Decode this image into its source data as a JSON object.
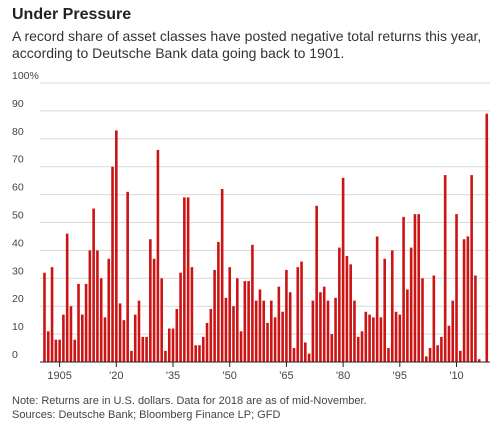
{
  "chart_data": {
    "type": "bar",
    "title": "Under Pressure",
    "subtitle": "A record share of asset classes have posted negative total returns this year, according to Deutsche Bank data going back to 1901.",
    "xlabel": "",
    "ylabel": "",
    "ylim": [
      0,
      100
    ],
    "yticks": [
      0,
      10,
      20,
      30,
      40,
      50,
      60,
      70,
      80,
      90,
      100
    ],
    "ytick_labels": [
      "0",
      "10",
      "20",
      "30",
      "40",
      "50",
      "60",
      "70",
      "80",
      "90",
      "100%"
    ],
    "xticks": [
      1905,
      1920,
      1935,
      1950,
      1965,
      1980,
      1995,
      2010
    ],
    "xtick_labels": [
      "1905",
      "'20",
      "'35",
      "'50",
      "'65",
      "'80",
      "'95",
      "'10"
    ],
    "grid": true,
    "color": "#cc1414",
    "x": [
      1901,
      1902,
      1903,
      1904,
      1905,
      1906,
      1907,
      1908,
      1909,
      1910,
      1911,
      1912,
      1913,
      1914,
      1915,
      1916,
      1917,
      1918,
      1919,
      1920,
      1921,
      1922,
      1923,
      1924,
      1925,
      1926,
      1927,
      1928,
      1929,
      1930,
      1931,
      1932,
      1933,
      1934,
      1935,
      1936,
      1937,
      1938,
      1939,
      1940,
      1941,
      1942,
      1943,
      1944,
      1945,
      1946,
      1947,
      1948,
      1949,
      1950,
      1951,
      1952,
      1953,
      1954,
      1955,
      1956,
      1957,
      1958,
      1959,
      1960,
      1961,
      1962,
      1963,
      1964,
      1965,
      1966,
      1967,
      1968,
      1969,
      1970,
      1971,
      1972,
      1973,
      1974,
      1975,
      1976,
      1977,
      1978,
      1979,
      1980,
      1981,
      1982,
      1983,
      1984,
      1985,
      1986,
      1987,
      1988,
      1989,
      1990,
      1991,
      1992,
      1993,
      1994,
      1995,
      1996,
      1997,
      1998,
      1999,
      2000,
      2001,
      2002,
      2003,
      2004,
      2005,
      2006,
      2007,
      2008,
      2009,
      2010,
      2011,
      2012,
      2013,
      2014,
      2015,
      2016,
      2017,
      2018
    ],
    "values": [
      32,
      11,
      34,
      8,
      8,
      17,
      46,
      20,
      8,
      28,
      17,
      28,
      40,
      55,
      40,
      30,
      16,
      37,
      70,
      83,
      21,
      15,
      61,
      4,
      17,
      22,
      9,
      9,
      44,
      37,
      76,
      30,
      4,
      12,
      12,
      19,
      32,
      59,
      59,
      34,
      6,
      6,
      9,
      14,
      19,
      33,
      43,
      62,
      23,
      34,
      20,
      30,
      11,
      29,
      29,
      42,
      22,
      26,
      22,
      14,
      22,
      16,
      27,
      18,
      33,
      25,
      5,
      34,
      36,
      7,
      3,
      22,
      56,
      25,
      27,
      22,
      10,
      23,
      41,
      66,
      38,
      35,
      22,
      9,
      11,
      18,
      17,
      16,
      45,
      16,
      37,
      5,
      40,
      18,
      17,
      52,
      26,
      41,
      53,
      53,
      30,
      2,
      5,
      31,
      6,
      9,
      67,
      13,
      22,
      53,
      4,
      44,
      45,
      67,
      31,
      1,
      0,
      89
    ]
  },
  "footer": {
    "note": "Note: Returns are in U.S. dollars. Data for 2018 are as of mid-November.",
    "sources": "Sources: Deutsche Bank; Bloomberg Finance LP; GFD"
  }
}
